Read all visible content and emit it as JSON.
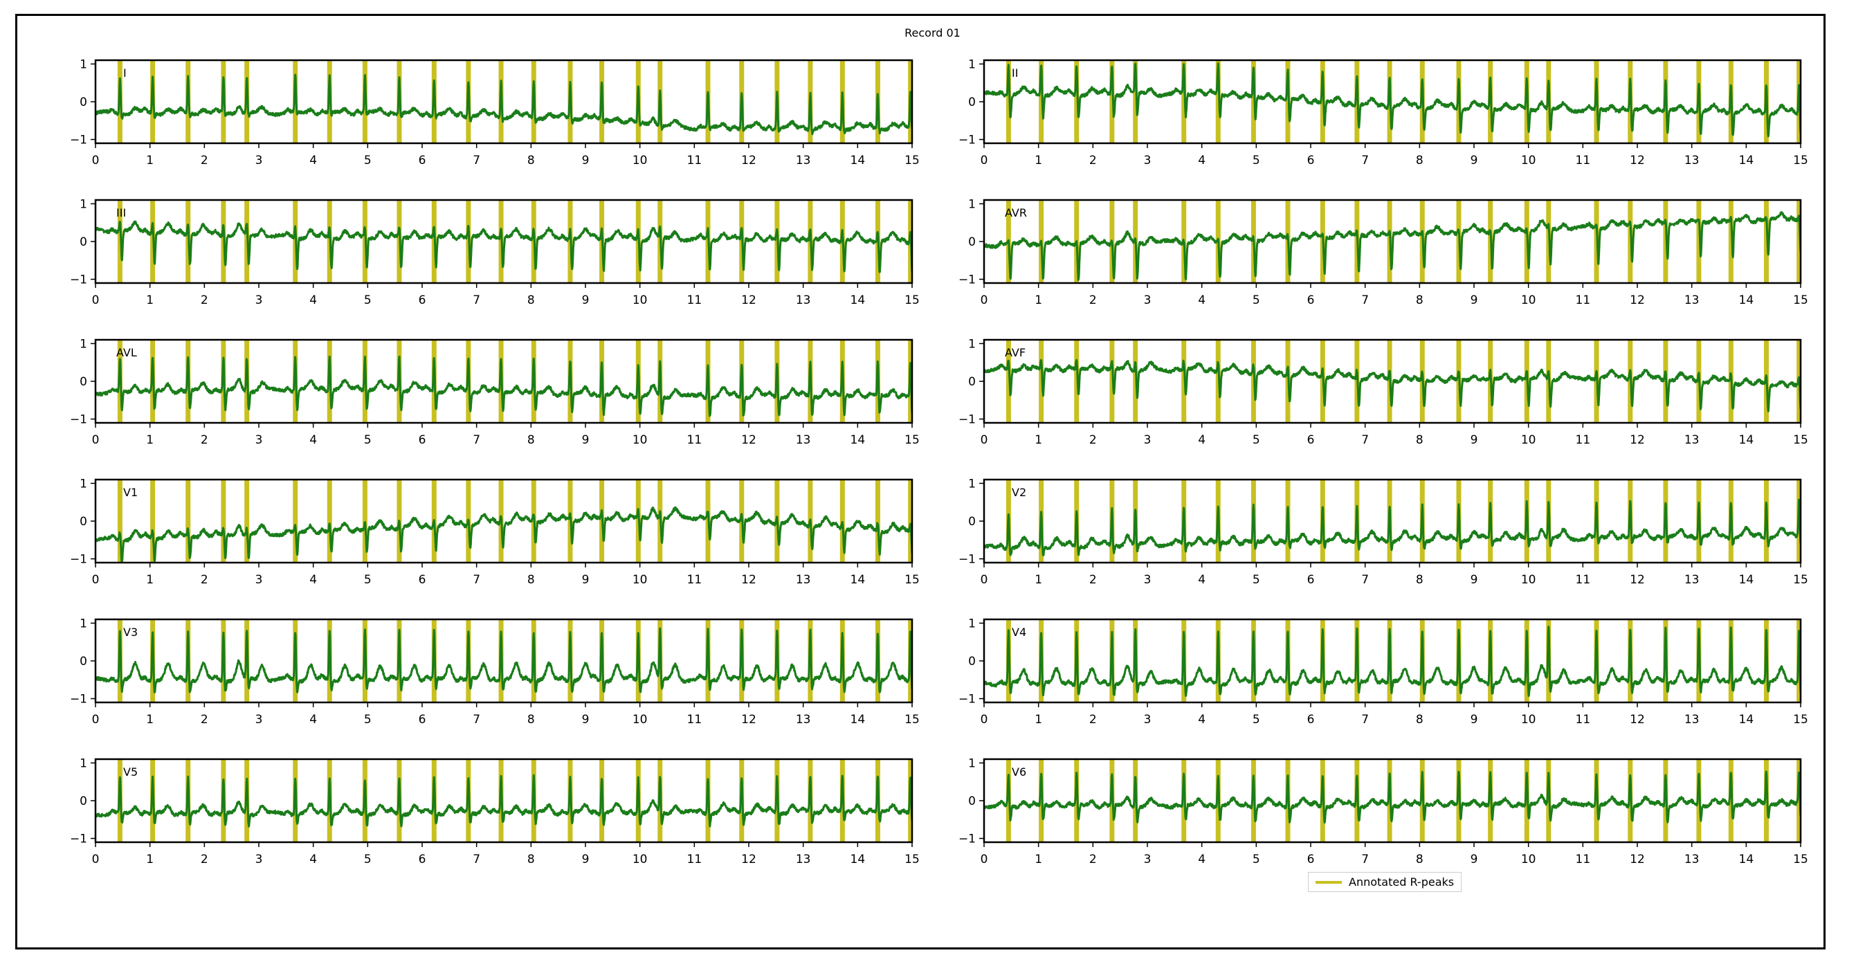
{
  "chart_data": {
    "type": "line",
    "title": "Record 01",
    "xlim": [
      0,
      15
    ],
    "ylim": [
      -1.1,
      1.1
    ],
    "xticks": [
      0,
      1,
      2,
      3,
      4,
      5,
      6,
      7,
      8,
      9,
      10,
      11,
      12,
      13,
      14,
      15
    ],
    "yticks": [
      -1,
      0,
      1
    ],
    "ytick_labels": [
      "−1",
      "0",
      "1"
    ],
    "signal_color": "#1a7d1a",
    "peak_color": "#c8c020",
    "legend": {
      "label": "Annotated R-peaks",
      "location": "lower-right"
    },
    "r_peaks": [
      0.45,
      1.05,
      1.7,
      2.35,
      2.78,
      3.67,
      4.3,
      4.95,
      5.58,
      6.22,
      6.85,
      7.45,
      8.05,
      8.72,
      9.3,
      9.97,
      10.37,
      11.25,
      11.87,
      12.52,
      13.13,
      13.72,
      14.37,
      14.97
    ],
    "leads": [
      {
        "name": "I",
        "baseline": [
          [
            0,
            -0.3
          ],
          [
            5,
            -0.3
          ],
          [
            9,
            -0.45
          ],
          [
            11,
            -0.7
          ],
          [
            15,
            -0.7
          ]
        ],
        "r_amp": 0.95,
        "s_amp": -0.1,
        "t_amp": 0.12
      },
      {
        "name": "II",
        "baseline": [
          [
            0,
            0.2
          ],
          [
            4,
            0.2
          ],
          [
            7,
            -0.1
          ],
          [
            10,
            -0.2
          ],
          [
            15,
            -0.3
          ]
        ],
        "r_amp": 0.8,
        "s_amp": -0.6,
        "t_amp": 0.15
      },
      {
        "name": "III",
        "baseline": [
          [
            0,
            0.3
          ],
          [
            4,
            0.1
          ],
          [
            8,
            0.1
          ],
          [
            15,
            0.0
          ]
        ],
        "r_amp": 0.3,
        "s_amp": -0.8,
        "t_amp": 0.2
      },
      {
        "name": "AVR",
        "baseline": [
          [
            0,
            -0.1
          ],
          [
            4,
            0.0
          ],
          [
            10,
            0.3
          ],
          [
            15,
            0.6
          ]
        ],
        "r_amp": 0.1,
        "s_amp": -0.95,
        "t_amp": 0.15
      },
      {
        "name": "AVL",
        "baseline": [
          [
            0,
            -0.3
          ],
          [
            5,
            -0.2
          ],
          [
            10,
            -0.4
          ],
          [
            15,
            -0.4
          ]
        ],
        "r_amp": 0.9,
        "s_amp": -0.5,
        "t_amp": 0.2
      },
      {
        "name": "AVF",
        "baseline": [
          [
            0,
            0.3
          ],
          [
            4,
            0.3
          ],
          [
            8,
            0.0
          ],
          [
            12,
            0.1
          ],
          [
            15,
            -0.15
          ]
        ],
        "r_amp": 0.25,
        "s_amp": -0.7,
        "t_amp": 0.15
      },
      {
        "name": "V1",
        "baseline": [
          [
            0,
            -0.5
          ],
          [
            4,
            -0.3
          ],
          [
            8,
            0.0
          ],
          [
            11,
            0.1
          ],
          [
            15,
            -0.3
          ]
        ],
        "r_amp": 0.2,
        "s_amp": -0.6,
        "t_amp": 0.2
      },
      {
        "name": "V2",
        "baseline": [
          [
            0,
            -0.7
          ],
          [
            4,
            -0.6
          ],
          [
            8,
            -0.5
          ],
          [
            15,
            -0.4
          ]
        ],
        "r_amp": 0.95,
        "s_amp": -0.2,
        "t_amp": 0.2
      },
      {
        "name": "V3",
        "baseline": [
          [
            0,
            -0.5
          ],
          [
            15,
            -0.5
          ]
        ],
        "r_amp": 1.3,
        "s_amp": -0.3,
        "t_amp": 0.4
      },
      {
        "name": "V4",
        "baseline": [
          [
            0,
            -0.6
          ],
          [
            15,
            -0.55
          ]
        ],
        "r_amp": 1.4,
        "s_amp": -0.3,
        "t_amp": 0.35
      },
      {
        "name": "V5",
        "baseline": [
          [
            0,
            -0.35
          ],
          [
            15,
            -0.3
          ]
        ],
        "r_amp": 0.95,
        "s_amp": -0.3,
        "t_amp": 0.2
      },
      {
        "name": "V6",
        "baseline": [
          [
            0,
            -0.15
          ],
          [
            15,
            -0.1
          ]
        ],
        "r_amp": 0.85,
        "s_amp": -0.4,
        "t_amp": 0.15
      }
    ]
  }
}
